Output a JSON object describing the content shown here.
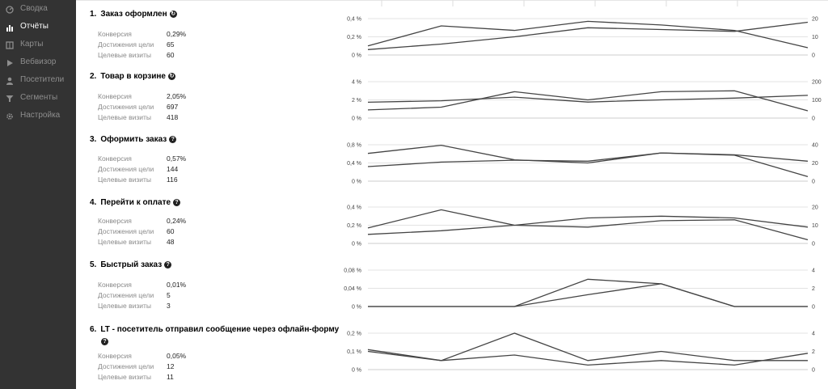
{
  "sidebar": {
    "items": [
      {
        "label": "Сводка",
        "icon": "gauge-icon",
        "active": false
      },
      {
        "label": "Отчёты",
        "icon": "bar-chart-icon",
        "active": true
      },
      {
        "label": "Карты",
        "icon": "map-icon",
        "active": false
      },
      {
        "label": "Вебвизор",
        "icon": "play-icon",
        "active": false
      },
      {
        "label": "Посетители",
        "icon": "person-icon",
        "active": false
      },
      {
        "label": "Сегменты",
        "icon": "filter-icon",
        "active": false
      },
      {
        "label": "Настройка",
        "icon": "gear-icon",
        "active": false
      }
    ]
  },
  "labels": {
    "conversion": "Конверсия",
    "reaches": "Достижения цели",
    "visits": "Целевые визиты"
  },
  "goals": [
    {
      "number": "1.",
      "title": "Заказ оформлен",
      "icon": "arrow-circle-icon",
      "conversion": "0,29%",
      "reaches": "65",
      "visits": "60"
    },
    {
      "number": "2.",
      "title": "Товар в корзине",
      "icon": "arrow-circle-icon",
      "conversion": "2,05%",
      "reaches": "697",
      "visits": "418"
    },
    {
      "number": "3.",
      "title": "Оформить заказ",
      "icon": "help-icon",
      "conversion": "0,57%",
      "reaches": "144",
      "visits": "116"
    },
    {
      "number": "4.",
      "title": "Перейти к оплате",
      "icon": "help-icon",
      "conversion": "0,24%",
      "reaches": "60",
      "visits": "48"
    },
    {
      "number": "5.",
      "title": "Быстрый заказ",
      "icon": "help-icon",
      "conversion": "0,01%",
      "reaches": "5",
      "visits": "3"
    },
    {
      "number": "6.",
      "title": "LT - посетитель отправил сообщение через офлайн-форму",
      "icon": "help-icon",
      "conversion": "0,05%",
      "reaches": "12",
      "visits": "11"
    }
  ],
  "chart_data": [
    {
      "type": "line",
      "left_ticks": [
        "0,4 %",
        "0,2 %",
        "0 %"
      ],
      "right_ticks": [
        "20",
        "10",
        "0"
      ],
      "left_ylim": [
        0,
        0.4
      ],
      "right_ylim": [
        0,
        20
      ],
      "series": [
        {
          "axis": "left",
          "values": [
            0.1,
            0.32,
            0.27,
            0.37,
            0.33,
            0.27,
            0.08
          ]
        },
        {
          "axis": "right",
          "values": [
            3,
            6,
            10,
            15,
            14,
            13,
            18
          ]
        }
      ]
    },
    {
      "type": "line",
      "left_ticks": [
        "4 %",
        "2 %",
        "0 %"
      ],
      "right_ticks": [
        "200",
        "100",
        "0"
      ],
      "left_ylim": [
        0,
        4
      ],
      "right_ylim": [
        0,
        200
      ],
      "series": [
        {
          "axis": "left",
          "values": [
            0.9,
            1.2,
            2.9,
            2.0,
            2.9,
            3.0,
            0.8
          ]
        },
        {
          "axis": "right",
          "values": [
            87,
            95,
            115,
            88,
            100,
            110,
            125
          ]
        }
      ]
    },
    {
      "type": "line",
      "left_ticks": [
        "0,8 %",
        "0,4 %",
        "0 %"
      ],
      "right_ticks": [
        "40",
        "20",
        "0"
      ],
      "left_ylim": [
        0,
        0.8
      ],
      "right_ylim": [
        0,
        40
      ],
      "series": [
        {
          "axis": "left",
          "values": [
            0.61,
            0.79,
            0.47,
            0.4,
            0.62,
            0.57,
            0.1
          ]
        },
        {
          "axis": "right",
          "values": [
            16,
            21,
            23,
            22,
            31,
            29,
            22
          ]
        }
      ]
    },
    {
      "type": "line",
      "left_ticks": [
        "0,4 %",
        "0,2 %",
        "0 %"
      ],
      "right_ticks": [
        "20",
        "10",
        "0"
      ],
      "left_ylim": [
        0,
        0.4
      ],
      "right_ylim": [
        0,
        20
      ],
      "series": [
        {
          "axis": "left",
          "values": [
            0.17,
            0.37,
            0.2,
            0.18,
            0.25,
            0.26,
            0.04
          ]
        },
        {
          "axis": "right",
          "values": [
            5,
            7,
            10,
            14,
            15,
            14,
            9
          ]
        }
      ]
    },
    {
      "type": "line",
      "left_ticks": [
        "0,08 %",
        "0,04 %",
        "0 %"
      ],
      "right_ticks": [
        "4",
        "2",
        "0"
      ],
      "left_ylim": [
        0,
        0.08
      ],
      "right_ylim": [
        0,
        4
      ],
      "series": [
        {
          "axis": "left",
          "values": [
            0,
            0,
            0,
            0.06,
            0.05,
            0,
            0
          ]
        },
        {
          "axis": "right",
          "values": [
            0,
            0,
            0,
            1.3,
            2.5,
            0,
            0
          ]
        }
      ]
    },
    {
      "type": "line",
      "left_ticks": [
        "0,2 %",
        "0,1 %",
        "0 %"
      ],
      "right_ticks": [
        "4",
        "2",
        "0"
      ],
      "left_ylim": [
        0,
        0.2
      ],
      "right_ylim": [
        0,
        4
      ],
      "series": [
        {
          "axis": "left",
          "values": [
            0.11,
            0.05,
            0.2,
            0.05,
            0.1,
            0.05,
            0.05
          ]
        },
        {
          "axis": "right",
          "values": [
            2,
            1.0,
            1.6,
            0.5,
            1.0,
            0.5,
            1.8
          ]
        }
      ]
    }
  ]
}
